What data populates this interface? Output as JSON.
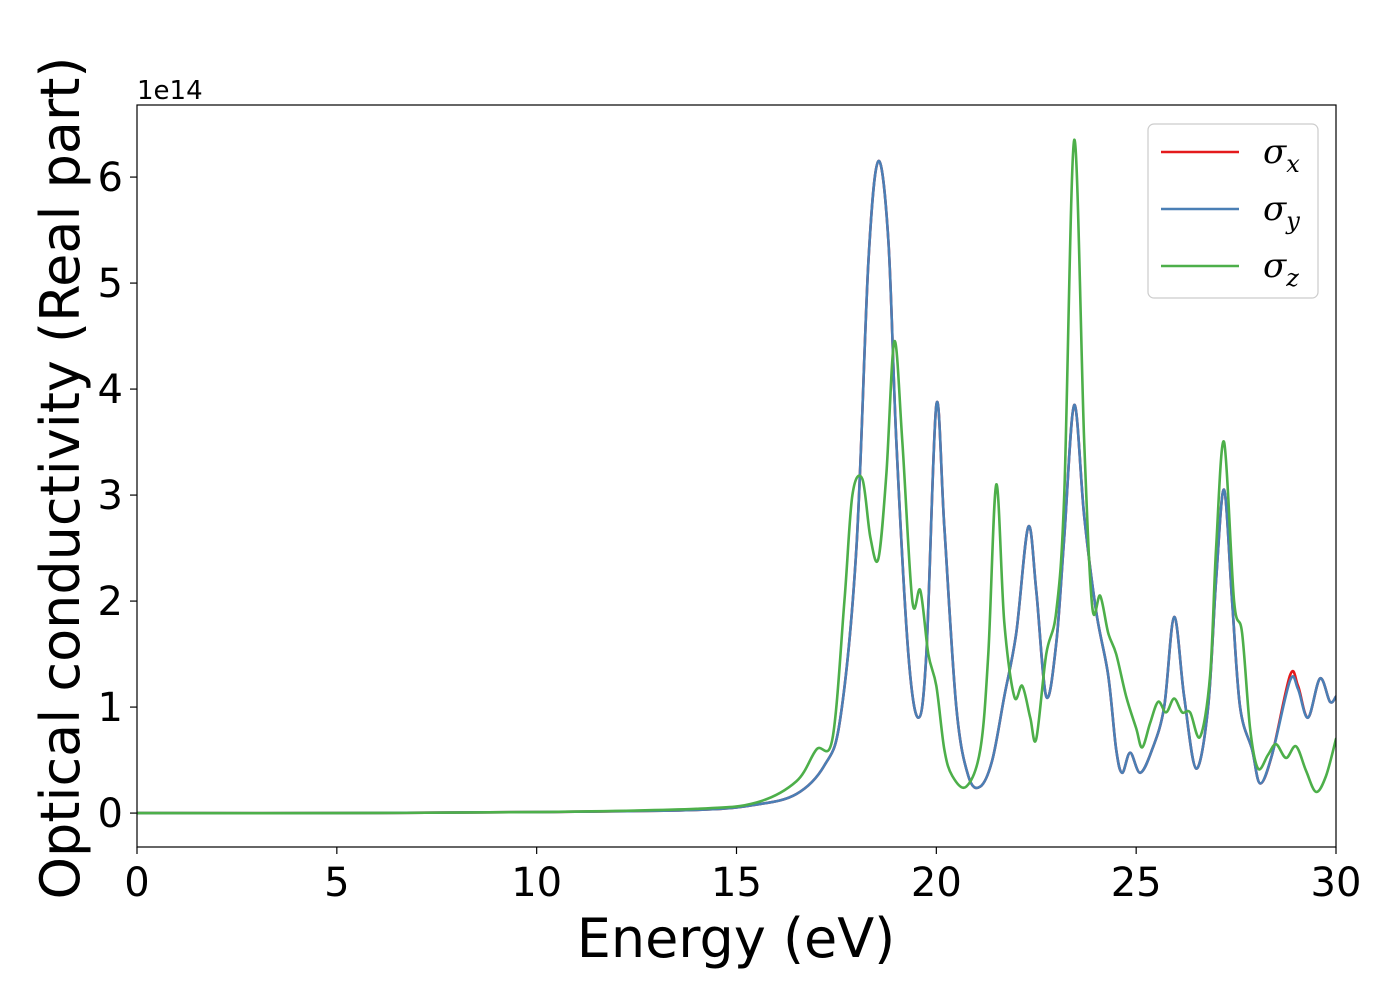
{
  "chart_data": {
    "type": "line",
    "title": "",
    "xlabel": "Energy (eV)",
    "ylabel": "Optical conductivity (Real part)",
    "y_offset_text": "1e14",
    "xlim": [
      0,
      30
    ],
    "ylim": [
      -0.32,
      6.68
    ],
    "x_ticks": [
      0,
      5,
      10,
      15,
      20,
      25,
      30
    ],
    "y_ticks": [
      0,
      1,
      2,
      3,
      4,
      5,
      6
    ],
    "grid": false,
    "legend_position": "top-right",
    "series": [
      {
        "name": "σx",
        "sym": "σ",
        "sub": "x",
        "color": "#e41a1c",
        "points": [
          [
            0,
            0
          ],
          [
            5,
            0
          ],
          [
            10,
            0.01
          ],
          [
            14,
            0.03
          ],
          [
            15.5,
            0.08
          ],
          [
            16.5,
            0.18
          ],
          [
            17.2,
            0.45
          ],
          [
            17.6,
            0.9
          ],
          [
            18.0,
            2.5
          ],
          [
            18.3,
            5.2
          ],
          [
            18.55,
            6.15
          ],
          [
            18.8,
            5.4
          ],
          [
            19.0,
            3.5
          ],
          [
            19.3,
            1.5
          ],
          [
            19.55,
            0.9
          ],
          [
            19.75,
            1.5
          ],
          [
            20.0,
            3.85
          ],
          [
            20.2,
            2.7
          ],
          [
            20.5,
            1.0
          ],
          [
            20.8,
            0.35
          ],
          [
            21.1,
            0.25
          ],
          [
            21.4,
            0.5
          ],
          [
            21.7,
            1.1
          ],
          [
            22.0,
            1.7
          ],
          [
            22.3,
            2.7
          ],
          [
            22.5,
            2.1
          ],
          [
            22.75,
            1.1
          ],
          [
            23.0,
            1.6
          ],
          [
            23.2,
            2.6
          ],
          [
            23.45,
            3.85
          ],
          [
            23.7,
            2.8
          ],
          [
            24.0,
            1.9
          ],
          [
            24.3,
            1.3
          ],
          [
            24.5,
            0.6
          ],
          [
            24.65,
            0.38
          ],
          [
            24.85,
            0.57
          ],
          [
            25.1,
            0.38
          ],
          [
            25.4,
            0.6
          ],
          [
            25.7,
            1.0
          ],
          [
            25.95,
            1.85
          ],
          [
            26.2,
            1.1
          ],
          [
            26.5,
            0.42
          ],
          [
            26.8,
            1.0
          ],
          [
            27.0,
            2.2
          ],
          [
            27.2,
            3.05
          ],
          [
            27.4,
            2.0
          ],
          [
            27.6,
            1.0
          ],
          [
            27.9,
            0.6
          ],
          [
            28.1,
            0.28
          ],
          [
            28.4,
            0.55
          ],
          [
            28.85,
            1.3
          ],
          [
            29.05,
            1.2
          ],
          [
            29.3,
            0.9
          ],
          [
            29.6,
            1.27
          ],
          [
            29.85,
            1.05
          ],
          [
            30.0,
            1.1
          ]
        ]
      },
      {
        "name": "σy",
        "sym": "σ",
        "sub": "y",
        "color": "#4a7fb5",
        "points": [
          [
            0,
            0
          ],
          [
            5,
            0
          ],
          [
            10,
            0.01
          ],
          [
            14,
            0.03
          ],
          [
            15.5,
            0.08
          ],
          [
            16.5,
            0.18
          ],
          [
            17.2,
            0.45
          ],
          [
            17.6,
            0.9
          ],
          [
            18.0,
            2.5
          ],
          [
            18.3,
            5.2
          ],
          [
            18.55,
            6.15
          ],
          [
            18.8,
            5.4
          ],
          [
            19.0,
            3.5
          ],
          [
            19.3,
            1.5
          ],
          [
            19.55,
            0.9
          ],
          [
            19.75,
            1.5
          ],
          [
            20.0,
            3.85
          ],
          [
            20.2,
            2.7
          ],
          [
            20.5,
            1.0
          ],
          [
            20.8,
            0.35
          ],
          [
            21.1,
            0.25
          ],
          [
            21.4,
            0.5
          ],
          [
            21.7,
            1.1
          ],
          [
            22.0,
            1.7
          ],
          [
            22.3,
            2.7
          ],
          [
            22.5,
            2.1
          ],
          [
            22.75,
            1.1
          ],
          [
            23.0,
            1.6
          ],
          [
            23.2,
            2.6
          ],
          [
            23.45,
            3.85
          ],
          [
            23.7,
            2.8
          ],
          [
            24.0,
            1.9
          ],
          [
            24.3,
            1.3
          ],
          [
            24.5,
            0.6
          ],
          [
            24.65,
            0.38
          ],
          [
            24.85,
            0.57
          ],
          [
            25.1,
            0.38
          ],
          [
            25.4,
            0.6
          ],
          [
            25.7,
            1.0
          ],
          [
            25.95,
            1.85
          ],
          [
            26.2,
            1.1
          ],
          [
            26.5,
            0.42
          ],
          [
            26.8,
            1.0
          ],
          [
            27.0,
            2.2
          ],
          [
            27.2,
            3.05
          ],
          [
            27.4,
            2.0
          ],
          [
            27.6,
            1.0
          ],
          [
            27.9,
            0.6
          ],
          [
            28.1,
            0.28
          ],
          [
            28.4,
            0.55
          ],
          [
            28.85,
            1.25
          ],
          [
            29.05,
            1.17
          ],
          [
            29.3,
            0.9
          ],
          [
            29.6,
            1.27
          ],
          [
            29.85,
            1.05
          ],
          [
            30.0,
            1.1
          ]
        ]
      },
      {
        "name": "σz",
        "sym": "σ",
        "sub": "z",
        "color": "#4daf4a",
        "points": [
          [
            0,
            0
          ],
          [
            5,
            0
          ],
          [
            10,
            0.01
          ],
          [
            14,
            0.04
          ],
          [
            15.5,
            0.1
          ],
          [
            16.5,
            0.3
          ],
          [
            17.0,
            0.6
          ],
          [
            17.4,
            0.7
          ],
          [
            17.7,
            2.0
          ],
          [
            17.9,
            3.0
          ],
          [
            18.15,
            3.15
          ],
          [
            18.35,
            2.6
          ],
          [
            18.55,
            2.4
          ],
          [
            18.75,
            3.2
          ],
          [
            18.95,
            4.45
          ],
          [
            19.15,
            3.5
          ],
          [
            19.4,
            2.0
          ],
          [
            19.6,
            2.1
          ],
          [
            19.8,
            1.5
          ],
          [
            20.0,
            1.2
          ],
          [
            20.2,
            0.6
          ],
          [
            20.4,
            0.35
          ],
          [
            20.75,
            0.25
          ],
          [
            21.1,
            0.6
          ],
          [
            21.3,
            1.5
          ],
          [
            21.5,
            3.1
          ],
          [
            21.7,
            1.8
          ],
          [
            21.95,
            1.1
          ],
          [
            22.15,
            1.2
          ],
          [
            22.35,
            0.9
          ],
          [
            22.5,
            0.7
          ],
          [
            22.75,
            1.5
          ],
          [
            23.0,
            1.9
          ],
          [
            23.2,
            3.0
          ],
          [
            23.45,
            6.35
          ],
          [
            23.7,
            3.5
          ],
          [
            23.9,
            1.95
          ],
          [
            24.1,
            2.05
          ],
          [
            24.3,
            1.7
          ],
          [
            24.5,
            1.5
          ],
          [
            24.75,
            1.1
          ],
          [
            25.0,
            0.8
          ],
          [
            25.15,
            0.62
          ],
          [
            25.35,
            0.85
          ],
          [
            25.55,
            1.05
          ],
          [
            25.75,
            0.95
          ],
          [
            25.95,
            1.08
          ],
          [
            26.15,
            0.95
          ],
          [
            26.35,
            0.95
          ],
          [
            26.6,
            0.72
          ],
          [
            26.85,
            1.3
          ],
          [
            27.0,
            2.5
          ],
          [
            27.2,
            3.5
          ],
          [
            27.45,
            2.0
          ],
          [
            27.65,
            1.7
          ],
          [
            27.85,
            0.8
          ],
          [
            28.05,
            0.42
          ],
          [
            28.3,
            0.55
          ],
          [
            28.5,
            0.65
          ],
          [
            28.75,
            0.52
          ],
          [
            29.0,
            0.63
          ],
          [
            29.25,
            0.4
          ],
          [
            29.5,
            0.2
          ],
          [
            29.75,
            0.35
          ],
          [
            30.0,
            0.7
          ]
        ]
      }
    ]
  }
}
